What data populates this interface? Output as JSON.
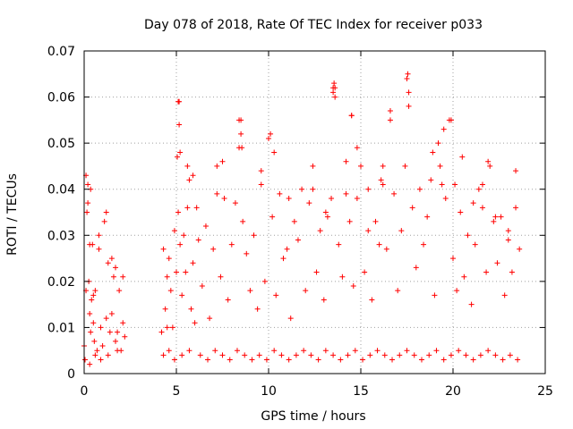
{
  "chart_data": {
    "type": "scatter",
    "title": "Day 078 of 2018, Rate Of TEC Index for receiver p033",
    "xlabel": "GPS time / hours",
    "ylabel": "ROTI / TECUs",
    "xlim": [
      0,
      25
    ],
    "ylim": [
      0,
      0.07
    ],
    "x_ticks": [
      0,
      5,
      10,
      15,
      20,
      25
    ],
    "x_tick_labels": [
      "0",
      "5",
      "10",
      "15",
      "20",
      "25"
    ],
    "y_ticks": [
      0,
      0.01,
      0.02,
      0.03,
      0.04,
      0.05,
      0.06,
      0.07
    ],
    "y_tick_labels": [
      "0",
      "0.01",
      "0.02",
      "0.03",
      "0.04",
      "0.05",
      "0.06",
      "0.07"
    ],
    "grid": true,
    "marker": "+",
    "marker_color": "#ff0000",
    "series": [
      {
        "name": "ROTI",
        "x": [
          0.0,
          0.1,
          0.15,
          0.2,
          0.25,
          0.3,
          0.35,
          0.4,
          0.45,
          0.5,
          0.55,
          0.6,
          0.7,
          0.8,
          0.9,
          1.0,
          1.1,
          1.2,
          1.3,
          1.4,
          1.5,
          1.6,
          1.7,
          1.8,
          1.9,
          2.0,
          2.1,
          2.2,
          4.2,
          4.3,
          4.4,
          4.5,
          4.6,
          4.7,
          4.8,
          4.9,
          5.0,
          5.05,
          5.1,
          5.15,
          5.2,
          5.3,
          5.4,
          5.5,
          5.6,
          5.7,
          5.8,
          5.9,
          6.0,
          6.2,
          6.4,
          6.6,
          6.8,
          7.0,
          7.2,
          7.4,
          7.6,
          7.8,
          8.0,
          8.2,
          8.4,
          8.5,
          8.6,
          8.8,
          9.0,
          9.2,
          9.4,
          9.6,
          9.8,
          10.0,
          10.2,
          10.4,
          10.6,
          10.8,
          11.0,
          11.2,
          11.4,
          11.6,
          11.8,
          12.0,
          12.2,
          12.4,
          12.6,
          12.8,
          13.0,
          13.2,
          13.4,
          13.5,
          13.6,
          13.8,
          14.0,
          14.2,
          14.4,
          14.5,
          14.6,
          14.8,
          15.0,
          15.2,
          15.4,
          15.6,
          15.8,
          16.0,
          16.2,
          16.4,
          16.6,
          16.8,
          17.0,
          17.2,
          17.4,
          17.5,
          17.6,
          17.8,
          18.0,
          18.2,
          18.4,
          18.6,
          18.8,
          19.0,
          19.2,
          19.4,
          19.6,
          19.8,
          20.0,
          20.2,
          20.4,
          20.6,
          20.8,
          21.0,
          21.2,
          21.4,
          21.6,
          21.8,
          22.0,
          22.2,
          22.4,
          22.6,
          22.8,
          23.0,
          23.2,
          23.4,
          23.6,
          0.1,
          0.2,
          0.3,
          0.35,
          0.5,
          0.8,
          1.2,
          1.5,
          1.7,
          2.1,
          4.5,
          5.1,
          5.15,
          5.2,
          5.6,
          5.9,
          6.1,
          7.2,
          7.5,
          8.4,
          8.5,
          8.55,
          9.6,
          10.1,
          10.3,
          11.1,
          12.4,
          13.1,
          13.5,
          13.55,
          13.6,
          14.2,
          14.5,
          14.8,
          15.4,
          16.1,
          16.2,
          16.6,
          17.5,
          17.55,
          17.6,
          18.9,
          19.3,
          19.5,
          19.9,
          20.1,
          20.5,
          21.1,
          21.6,
          21.9,
          22.3,
          23.0,
          23.4,
          0.05,
          0.3,
          0.6,
          0.9,
          1.3,
          1.8,
          4.3,
          4.6,
          4.9,
          5.3,
          5.7,
          6.3,
          6.7,
          7.1,
          7.5,
          7.9,
          8.3,
          8.7,
          9.1,
          9.5,
          9.9,
          10.3,
          10.7,
          11.1,
          11.5,
          11.9,
          12.3,
          12.7,
          13.1,
          13.5,
          13.9,
          14.3,
          14.7,
          15.1,
          15.5,
          15.9,
          16.3,
          16.7,
          17.1,
          17.5,
          17.9,
          18.3,
          18.7,
          19.1,
          19.5,
          19.9,
          20.3,
          20.7,
          21.1,
          21.5,
          21.9,
          22.3,
          22.7,
          23.1,
          23.5
        ],
        "y": [
          0.006,
          0.018,
          0.035,
          0.041,
          0.02,
          0.013,
          0.009,
          0.016,
          0.028,
          0.011,
          0.007,
          0.018,
          0.005,
          0.027,
          0.01,
          0.006,
          0.033,
          0.012,
          0.024,
          0.009,
          0.013,
          0.021,
          0.007,
          0.009,
          0.018,
          0.005,
          0.021,
          0.008,
          0.009,
          0.027,
          0.014,
          0.021,
          0.025,
          0.018,
          0.01,
          0.031,
          0.022,
          0.047,
          0.035,
          0.059,
          0.028,
          0.017,
          0.03,
          0.022,
          0.036,
          0.042,
          0.014,
          0.024,
          0.011,
          0.029,
          0.019,
          0.032,
          0.012,
          0.027,
          0.045,
          0.021,
          0.038,
          0.016,
          0.028,
          0.037,
          0.049,
          0.055,
          0.033,
          0.026,
          0.018,
          0.03,
          0.014,
          0.041,
          0.02,
          0.051,
          0.034,
          0.017,
          0.039,
          0.025,
          0.027,
          0.012,
          0.033,
          0.029,
          0.04,
          0.018,
          0.037,
          0.045,
          0.022,
          0.031,
          0.016,
          0.034,
          0.038,
          0.062,
          0.06,
          0.028,
          0.021,
          0.039,
          0.033,
          0.056,
          0.019,
          0.038,
          0.045,
          0.022,
          0.031,
          0.016,
          0.033,
          0.028,
          0.045,
          0.027,
          0.057,
          0.039,
          0.018,
          0.031,
          0.045,
          0.064,
          0.058,
          0.036,
          0.023,
          0.04,
          0.028,
          0.034,
          0.042,
          0.017,
          0.05,
          0.041,
          0.038,
          0.055,
          0.025,
          0.018,
          0.035,
          0.021,
          0.03,
          0.015,
          0.028,
          0.04,
          0.036,
          0.022,
          0.045,
          0.033,
          0.024,
          0.034,
          0.017,
          0.031,
          0.022,
          0.044,
          0.027,
          0.043,
          0.037,
          0.028,
          0.04,
          0.017,
          0.03,
          0.035,
          0.025,
          0.023,
          0.011,
          0.01,
          0.059,
          0.054,
          0.048,
          0.045,
          0.043,
          0.036,
          0.039,
          0.046,
          0.055,
          0.052,
          0.049,
          0.044,
          0.052,
          0.048,
          0.038,
          0.04,
          0.035,
          0.061,
          0.063,
          0.062,
          0.046,
          0.056,
          0.049,
          0.04,
          0.042,
          0.041,
          0.055,
          0.064,
          0.065,
          0.061,
          0.048,
          0.045,
          0.053,
          0.055,
          0.041,
          0.047,
          0.037,
          0.041,
          0.046,
          0.034,
          0.029,
          0.036,
          0.003,
          0.002,
          0.004,
          0.003,
          0.004,
          0.005,
          0.004,
          0.005,
          0.003,
          0.004,
          0.005,
          0.004,
          0.003,
          0.005,
          0.004,
          0.003,
          0.005,
          0.004,
          0.003,
          0.004,
          0.003,
          0.005,
          0.004,
          0.003,
          0.004,
          0.005,
          0.004,
          0.003,
          0.005,
          0.004,
          0.003,
          0.004,
          0.005,
          0.003,
          0.004,
          0.005,
          0.004,
          0.003,
          0.004,
          0.005,
          0.004,
          0.003,
          0.004,
          0.005,
          0.003,
          0.004,
          0.005,
          0.004,
          0.003,
          0.004,
          0.005,
          0.004,
          0.003,
          0.004,
          0.003
        ]
      }
    ]
  }
}
